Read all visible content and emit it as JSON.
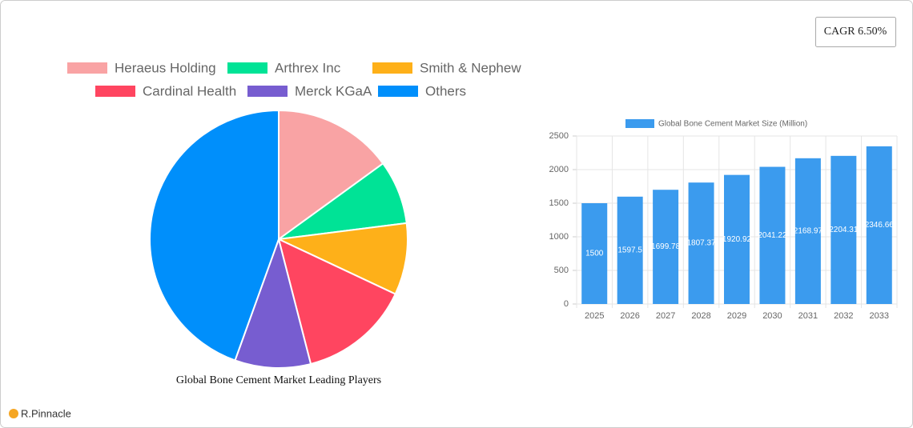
{
  "cagr": "CAGR 6.50%",
  "brand": "R.Pinnacle",
  "chart_data": [
    {
      "type": "pie",
      "title": "Global Bone Cement Market Leading Players",
      "categories": [
        "Heraeus Holding",
        "Arthrex Inc",
        "Smith & Nephew",
        "Cardinal Health",
        "Merck KGaA",
        "Others"
      ],
      "values": [
        15,
        8,
        9,
        14,
        9.5,
        44.5
      ],
      "colors": [
        "#f9a3a4",
        "#00e396",
        "#feb019",
        "#ff4560",
        "#775dd0",
        "#008ffb"
      ]
    },
    {
      "type": "bar",
      "categories": [
        "2025",
        "2026",
        "2027",
        "2028",
        "2029",
        "2030",
        "2031",
        "2032",
        "2033"
      ],
      "series": [
        {
          "name": "Global Bone Cement Market Size (Million)",
          "color": "#3b9bee",
          "values": [
            1500,
            1597.5,
            1699.78,
            1807.37,
            1920.92,
            2041.22,
            2168.97,
            2204.31,
            2346.66
          ]
        }
      ],
      "ylim": [
        0,
        2500
      ],
      "yticks": [
        0,
        500,
        1000,
        1500,
        2000,
        2500
      ],
      "grid": true
    }
  ]
}
